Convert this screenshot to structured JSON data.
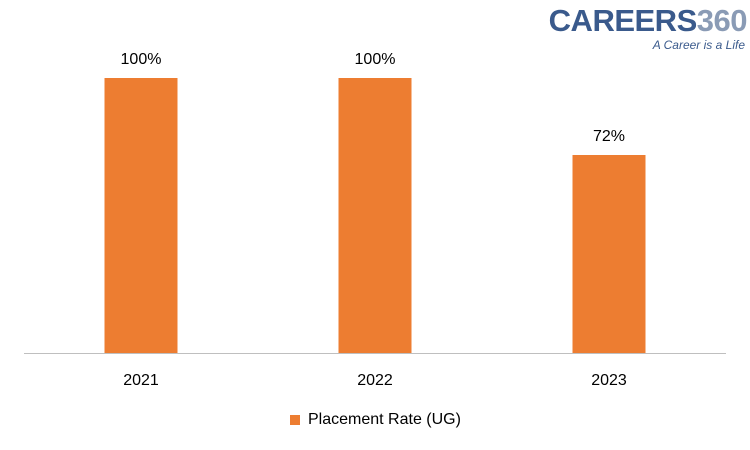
{
  "chart_data": {
    "type": "bar",
    "categories": [
      "2021",
      "2022",
      "2023"
    ],
    "series": [
      {
        "name": "Placement Rate (UG)",
        "values": [
          100,
          100,
          72
        ],
        "labels": [
          "100%",
          "100%",
          "72%"
        ]
      }
    ],
    "ylim": [
      0,
      100
    ],
    "grid": false,
    "legend_position": "bottom",
    "bar_color": "#ED7D31",
    "axis_color": "#BFBFBF"
  },
  "logo": {
    "word": "CAREERS",
    "number": "360",
    "tagline": "A Career is a Life",
    "word_color": "#3A5A8C",
    "number_color": "#8A9BB5",
    "tagline_color": "#3A5A8C"
  }
}
